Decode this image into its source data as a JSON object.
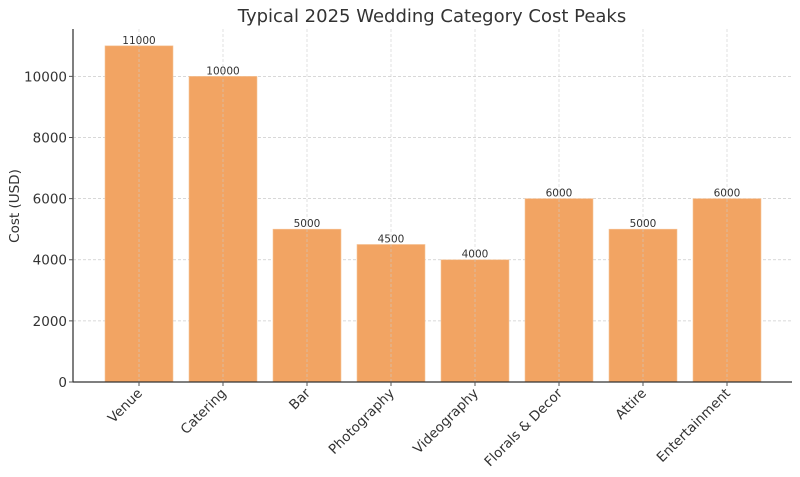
{
  "chart_data": {
    "type": "bar",
    "title": "Typical 2025 Wedding Category Cost Peaks",
    "xlabel": "",
    "ylabel": "Cost (USD)",
    "categories": [
      "Venue",
      "Catering",
      "Bar",
      "Photography",
      "Videography",
      "Florals & Decor",
      "Attire",
      "Entertainment"
    ],
    "values": [
      11000,
      10000,
      5000,
      4500,
      4000,
      6000,
      5000,
      6000
    ],
    "data_labels": [
      "11000",
      "10000",
      "5000",
      "4500",
      "4000",
      "6000",
      "5000",
      "6000"
    ],
    "ylim": [
      0,
      11550
    ],
    "yticks": [
      0,
      2000,
      4000,
      6000,
      8000,
      10000
    ],
    "ytick_labels": [
      "0",
      "2000",
      "4000",
      "6000",
      "8000",
      "10000"
    ],
    "grid": true,
    "legend": null,
    "bar_color": "#f2a463",
    "xtick_rotation": 45
  }
}
